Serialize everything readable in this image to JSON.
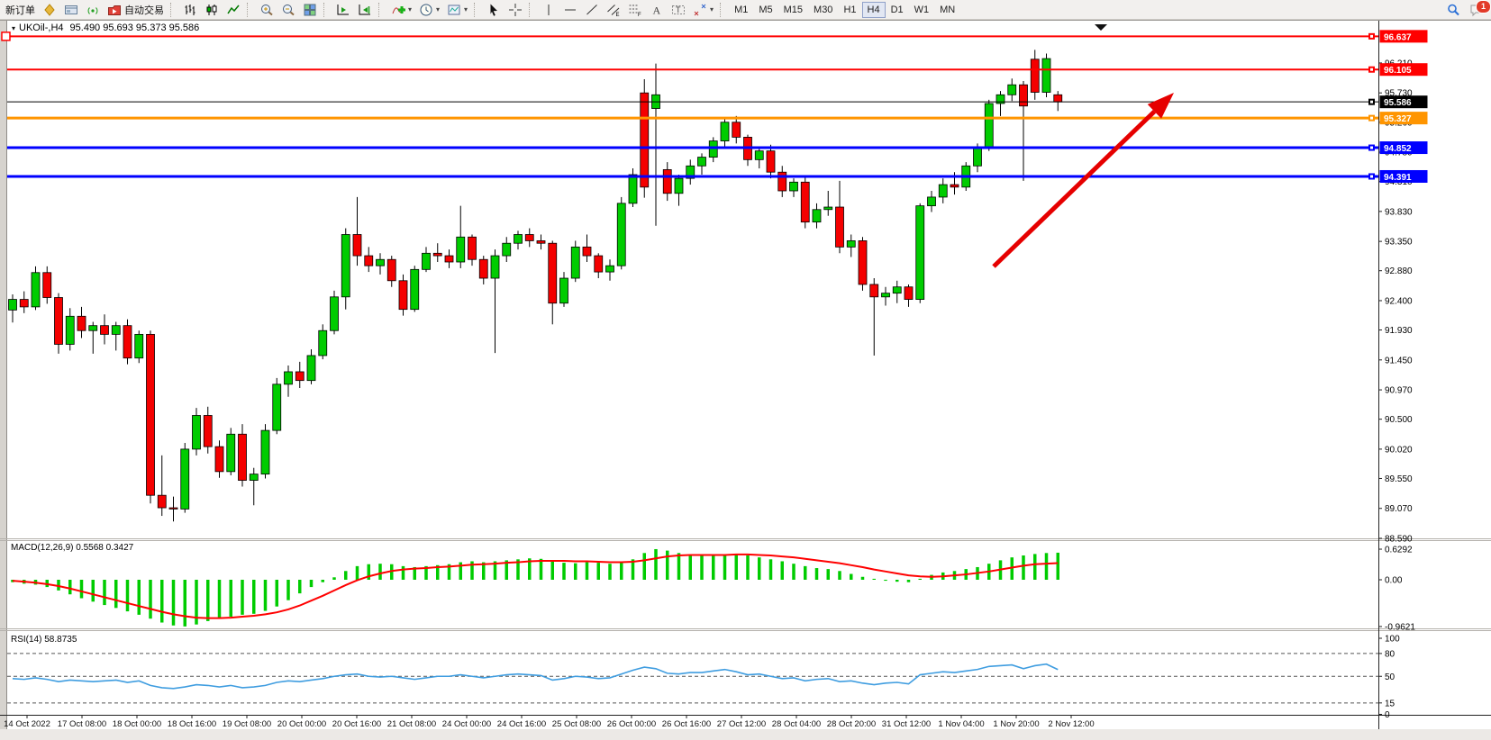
{
  "toolbar": {
    "groups": [
      {
        "items": [
          {
            "name": "new-order-button",
            "label": "新订单"
          },
          {
            "name": "new-chart-button",
            "icon": "chart-add"
          },
          {
            "name": "terminal-button",
            "icon": "terminal"
          },
          {
            "name": "signals-button",
            "icon": "signals"
          },
          {
            "name": "autotrading-button",
            "label": "自动交易",
            "icon": "autotrade"
          }
        ]
      },
      {
        "items": [
          {
            "name": "bar-chart-button",
            "icon": "bars"
          },
          {
            "name": "candlestick-button",
            "icon": "candles"
          },
          {
            "name": "line-chart-button",
            "icon": "line"
          }
        ]
      },
      {
        "items": [
          {
            "name": "zoom-in-button",
            "icon": "zoom-in"
          },
          {
            "name": "zoom-out-button",
            "icon": "zoom-out"
          },
          {
            "name": "tile-windows-button",
            "icon": "tile"
          }
        ]
      },
      {
        "items": [
          {
            "name": "auto-scroll-button",
            "icon": "autoscroll"
          },
          {
            "name": "chart-shift-button",
            "icon": "chartshift"
          }
        ]
      },
      {
        "items": [
          {
            "name": "indicators-button",
            "icon": "indicators",
            "dropdown": true
          },
          {
            "name": "periods-button",
            "icon": "clock",
            "dropdown": true
          },
          {
            "name": "templates-button",
            "icon": "template",
            "dropdown": true
          }
        ]
      },
      {
        "items": [
          {
            "name": "cursor-button",
            "icon": "cursor"
          },
          {
            "name": "crosshair-button",
            "icon": "crosshair"
          }
        ]
      },
      {
        "items": [
          {
            "name": "vertical-line-button",
            "icon": "vline"
          },
          {
            "name": "horizontal-line-button",
            "icon": "hline"
          },
          {
            "name": "trendline-button",
            "icon": "trend"
          },
          {
            "name": "equidistant-channel-button",
            "icon": "channel"
          },
          {
            "name": "fibonacci-button",
            "icon": "fib"
          },
          {
            "name": "text-button",
            "icon": "text"
          },
          {
            "name": "text-label-button",
            "icon": "label"
          },
          {
            "name": "arrows-button",
            "icon": "arrows",
            "dropdown": true
          }
        ]
      }
    ],
    "timeframes": {
      "items": [
        "M1",
        "M5",
        "M15",
        "M30",
        "H1",
        "H4",
        "D1",
        "W1",
        "MN"
      ],
      "active": "H4"
    },
    "right": {
      "notification_count": "1"
    }
  },
  "chart": {
    "title_symbol": "UKOil-,H4",
    "title_ohlc": "95.490 95.693 95.373 95.586"
  },
  "chart_data": {
    "type": "candlestick",
    "symbol": "UKOil-",
    "timeframe": "H4",
    "title_ohlc_values": [
      95.49,
      95.693,
      95.373,
      95.586
    ],
    "colors": {
      "bull": "#00cc00",
      "bear": "#f40000",
      "wick": "#000000",
      "axis": "#000000",
      "macd_hist": "#00cc00",
      "macd_signal": "#ff0000",
      "rsi_line": "#3f9de0",
      "arrow": "#e60000"
    },
    "price_ticks": [
      96.21,
      95.73,
      95.26,
      94.78,
      94.31,
      93.83,
      93.35,
      92.88,
      92.4,
      91.93,
      91.45,
      90.97,
      90.5,
      90.02,
      89.55,
      89.07,
      88.59
    ],
    "hlines": [
      {
        "price": 96.637,
        "color": "#ff0000",
        "width": 2,
        "role": "resistance"
      },
      {
        "price": 96.105,
        "color": "#ff0000",
        "width": 2,
        "role": "resistance"
      },
      {
        "price": 95.586,
        "color": "#000000",
        "width": 1,
        "role": "current-price"
      },
      {
        "price": 95.327,
        "color": "#ff9500",
        "width": 3,
        "role": "level"
      },
      {
        "price": 94.852,
        "color": "#0000ff",
        "width": 3,
        "role": "support"
      },
      {
        "price": 94.391,
        "color": "#0000ff",
        "width": 3,
        "role": "support"
      }
    ],
    "trend_arrow": {
      "from": [
        1103,
        296
      ],
      "to": [
        1303,
        103
      ]
    },
    "candles": [
      [
        92.25,
        92.5,
        92.05,
        92.42
      ],
      [
        92.42,
        92.55,
        92.2,
        92.3
      ],
      [
        92.3,
        92.95,
        92.25,
        92.85
      ],
      [
        92.85,
        92.95,
        92.35,
        92.45
      ],
      [
        92.45,
        92.52,
        91.55,
        91.7
      ],
      [
        91.7,
        92.28,
        91.6,
        92.15
      ],
      [
        92.15,
        92.3,
        91.8,
        91.92
      ],
      [
        91.92,
        92.06,
        91.55,
        92.0
      ],
      [
        92.0,
        92.18,
        91.7,
        91.86
      ],
      [
        91.86,
        92.06,
        91.6,
        92.0
      ],
      [
        92.0,
        92.1,
        91.38,
        91.48
      ],
      [
        91.48,
        91.92,
        91.4,
        91.86
      ],
      [
        91.86,
        91.92,
        89.15,
        89.28
      ],
      [
        89.28,
        89.92,
        88.95,
        89.08
      ],
      [
        89.08,
        89.26,
        88.86,
        89.06
      ],
      [
        89.06,
        90.12,
        89.0,
        90.02
      ],
      [
        90.02,
        90.68,
        89.92,
        90.56
      ],
      [
        90.56,
        90.7,
        89.95,
        90.06
      ],
      [
        90.06,
        90.16,
        89.56,
        89.66
      ],
      [
        89.66,
        90.36,
        89.6,
        90.26
      ],
      [
        90.26,
        90.42,
        89.42,
        89.52
      ],
      [
        89.52,
        89.72,
        89.12,
        89.62
      ],
      [
        89.62,
        90.42,
        89.55,
        90.32
      ],
      [
        90.32,
        91.16,
        90.26,
        91.06
      ],
      [
        91.06,
        91.36,
        90.86,
        91.26
      ],
      [
        91.26,
        91.42,
        91.0,
        91.12
      ],
      [
        91.12,
        91.62,
        91.06,
        91.52
      ],
      [
        91.52,
        92.02,
        91.46,
        91.92
      ],
      [
        91.92,
        92.56,
        91.86,
        92.46
      ],
      [
        92.46,
        93.56,
        92.26,
        93.46
      ],
      [
        93.46,
        94.06,
        92.96,
        93.12
      ],
      [
        93.12,
        93.26,
        92.86,
        92.96
      ],
      [
        92.96,
        93.16,
        92.82,
        93.06
      ],
      [
        93.06,
        93.12,
        92.62,
        92.72
      ],
      [
        92.72,
        92.82,
        92.16,
        92.26
      ],
      [
        92.26,
        92.96,
        92.22,
        92.9
      ],
      [
        92.9,
        93.26,
        92.86,
        93.16
      ],
      [
        93.16,
        93.32,
        93.02,
        93.12
      ],
      [
        93.12,
        93.22,
        92.92,
        93.02
      ],
      [
        93.02,
        93.92,
        92.92,
        93.42
      ],
      [
        93.42,
        93.46,
        92.96,
        93.06
      ],
      [
        93.06,
        93.12,
        92.66,
        92.76
      ],
      [
        92.76,
        93.22,
        91.56,
        93.12
      ],
      [
        93.12,
        93.42,
        93.02,
        93.32
      ],
      [
        93.32,
        93.52,
        93.22,
        93.46
      ],
      [
        93.46,
        93.56,
        93.26,
        93.36
      ],
      [
        93.36,
        93.46,
        93.22,
        93.32
      ],
      [
        93.32,
        93.36,
        92.02,
        92.36
      ],
      [
        92.36,
        92.86,
        92.3,
        92.76
      ],
      [
        92.76,
        93.36,
        92.7,
        93.26
      ],
      [
        93.26,
        93.46,
        93.02,
        93.12
      ],
      [
        93.12,
        93.16,
        92.76,
        92.86
      ],
      [
        92.86,
        93.06,
        92.72,
        92.96
      ],
      [
        92.96,
        94.06,
        92.9,
        93.96
      ],
      [
        93.96,
        94.52,
        93.9,
        94.42
      ],
      [
        95.73,
        95.95,
        94.05,
        94.22
      ],
      [
        95.48,
        96.2,
        93.6,
        95.7
      ],
      [
        94.5,
        94.62,
        94.0,
        94.12
      ],
      [
        94.12,
        94.42,
        93.92,
        94.36
      ],
      [
        94.36,
        94.66,
        94.26,
        94.56
      ],
      [
        94.56,
        94.76,
        94.42,
        94.7
      ],
      [
        94.7,
        95.02,
        94.62,
        94.96
      ],
      [
        94.96,
        95.32,
        94.86,
        95.26
      ],
      [
        95.26,
        95.36,
        94.92,
        95.02
      ],
      [
        95.02,
        95.06,
        94.56,
        94.66
      ],
      [
        94.66,
        94.86,
        94.52,
        94.8
      ],
      [
        94.8,
        94.9,
        94.36,
        94.46
      ],
      [
        94.46,
        94.56,
        94.06,
        94.16
      ],
      [
        94.16,
        94.36,
        94.06,
        94.3
      ],
      [
        94.3,
        94.4,
        93.56,
        93.66
      ],
      [
        93.66,
        93.96,
        93.56,
        93.86
      ],
      [
        93.86,
        94.16,
        93.76,
        93.9
      ],
      [
        93.9,
        94.32,
        93.16,
        93.26
      ],
      [
        93.26,
        93.46,
        93.1,
        93.36
      ],
      [
        93.36,
        93.42,
        92.56,
        92.66
      ],
      [
        92.66,
        92.76,
        91.52,
        92.46
      ],
      [
        92.46,
        92.62,
        92.32,
        92.52
      ],
      [
        92.52,
        92.72,
        92.36,
        92.62
      ],
      [
        92.62,
        92.66,
        92.3,
        92.42
      ],
      [
        92.42,
        93.96,
        92.36,
        93.92
      ],
      [
        93.92,
        94.16,
        93.82,
        94.06
      ],
      [
        94.06,
        94.36,
        93.96,
        94.26
      ],
      [
        94.26,
        94.46,
        94.1,
        94.22
      ],
      [
        94.22,
        94.62,
        94.16,
        94.56
      ],
      [
        94.56,
        94.92,
        94.46,
        94.86
      ],
      [
        94.86,
        95.62,
        94.8,
        95.56
      ],
      [
        95.56,
        95.76,
        95.36,
        95.7
      ],
      [
        95.7,
        95.96,
        95.6,
        95.86
      ],
      [
        95.86,
        95.92,
        94.32,
        95.52
      ],
      [
        96.27,
        96.42,
        95.62,
        95.74
      ],
      [
        95.74,
        96.36,
        95.66,
        96.28
      ],
      [
        95.7,
        95.76,
        95.44,
        95.586
      ]
    ],
    "macd": {
      "label": "MACD(12,26,9)",
      "values_text": "0.5568 0.3427",
      "scale_labels": [
        "0.6292",
        "0.00",
        "-0.9621"
      ],
      "scale_values": [
        0.6292,
        0.0,
        -0.9621
      ],
      "histogram": [
        -0.05,
        -0.08,
        -0.1,
        -0.15,
        -0.22,
        -0.3,
        -0.38,
        -0.45,
        -0.52,
        -0.58,
        -0.65,
        -0.72,
        -0.8,
        -0.88,
        -0.94,
        -0.96,
        -0.92,
        -0.85,
        -0.8,
        -0.76,
        -0.72,
        -0.7,
        -0.64,
        -0.55,
        -0.42,
        -0.28,
        -0.15,
        -0.05,
        0.05,
        0.18,
        0.28,
        0.32,
        0.33,
        0.32,
        0.28,
        0.26,
        0.28,
        0.3,
        0.32,
        0.36,
        0.38,
        0.36,
        0.38,
        0.4,
        0.42,
        0.44,
        0.43,
        0.38,
        0.35,
        0.34,
        0.36,
        0.35,
        0.33,
        0.36,
        0.42,
        0.55,
        0.63,
        0.6,
        0.55,
        0.52,
        0.5,
        0.5,
        0.52,
        0.53,
        0.5,
        0.46,
        0.42,
        0.38,
        0.33,
        0.28,
        0.24,
        0.22,
        0.18,
        0.12,
        0.06,
        0.02,
        -0.02,
        -0.04,
        -0.05,
        0.02,
        0.1,
        0.15,
        0.18,
        0.22,
        0.26,
        0.33,
        0.4,
        0.46,
        0.5,
        0.53,
        0.55,
        0.5568
      ],
      "signal": [
        -0.02,
        -0.04,
        -0.06,
        -0.09,
        -0.13,
        -0.18,
        -0.24,
        -0.3,
        -0.36,
        -0.42,
        -0.48,
        -0.54,
        -0.6,
        -0.66,
        -0.71,
        -0.75,
        -0.78,
        -0.79,
        -0.79,
        -0.78,
        -0.76,
        -0.74,
        -0.71,
        -0.67,
        -0.61,
        -0.53,
        -0.43,
        -0.33,
        -0.22,
        -0.11,
        -0.01,
        0.07,
        0.13,
        0.18,
        0.21,
        0.23,
        0.24,
        0.26,
        0.27,
        0.29,
        0.31,
        0.32,
        0.33,
        0.35,
        0.36,
        0.38,
        0.39,
        0.39,
        0.39,
        0.38,
        0.38,
        0.37,
        0.36,
        0.36,
        0.37,
        0.4,
        0.44,
        0.48,
        0.5,
        0.51,
        0.51,
        0.51,
        0.51,
        0.52,
        0.52,
        0.51,
        0.5,
        0.48,
        0.46,
        0.43,
        0.4,
        0.37,
        0.34,
        0.3,
        0.26,
        0.21,
        0.17,
        0.13,
        0.09,
        0.07,
        0.06,
        0.07,
        0.09,
        0.11,
        0.14,
        0.17,
        0.21,
        0.25,
        0.29,
        0.32,
        0.33,
        0.3427
      ]
    },
    "rsi": {
      "label": "RSI(14)",
      "value_text": "58.8735",
      "scale_labels": [
        "100",
        "80",
        "50",
        "15",
        "0"
      ],
      "scale_values": [
        100,
        80,
        50,
        15,
        0
      ],
      "dashed_levels": [
        80,
        50,
        15
      ],
      "line": [
        47,
        46,
        48,
        46,
        43,
        45,
        44,
        43,
        44,
        45,
        42,
        44,
        38,
        35,
        34,
        36,
        39,
        38,
        36,
        38,
        35,
        36,
        38,
        42,
        44,
        43,
        45,
        47,
        50,
        52,
        53,
        50,
        49,
        50,
        48,
        46,
        48,
        50,
        50,
        52,
        50,
        48,
        50,
        52,
        53,
        52,
        51,
        45,
        47,
        50,
        49,
        47,
        48,
        53,
        58,
        62,
        60,
        54,
        53,
        55,
        55,
        57,
        59,
        56,
        52,
        53,
        50,
        47,
        48,
        44,
        46,
        47,
        43,
        44,
        41,
        39,
        41,
        42,
        40,
        52,
        54,
        56,
        55,
        57,
        59,
        63,
        64,
        65,
        60,
        64,
        66,
        58.87
      ]
    },
    "time_labels": [
      "14 Oct 2022",
      "17 Oct 08:00",
      "18 Oct 00:00",
      "18 Oct 16:00",
      "19 Oct 08:00",
      "20 Oct 00:00",
      "20 Oct 16:00",
      "21 Oct 08:00",
      "24 Oct 00:00",
      "24 Oct 16:00",
      "25 Oct 08:00",
      "26 Oct 00:00",
      "26 Oct 16:00",
      "27 Oct 12:00",
      "28 Oct 04:00",
      "28 Oct 20:00",
      "31 Oct 12:00",
      "1 Nov 04:00",
      "1 Nov 20:00",
      "2 Nov 12:00"
    ]
  }
}
